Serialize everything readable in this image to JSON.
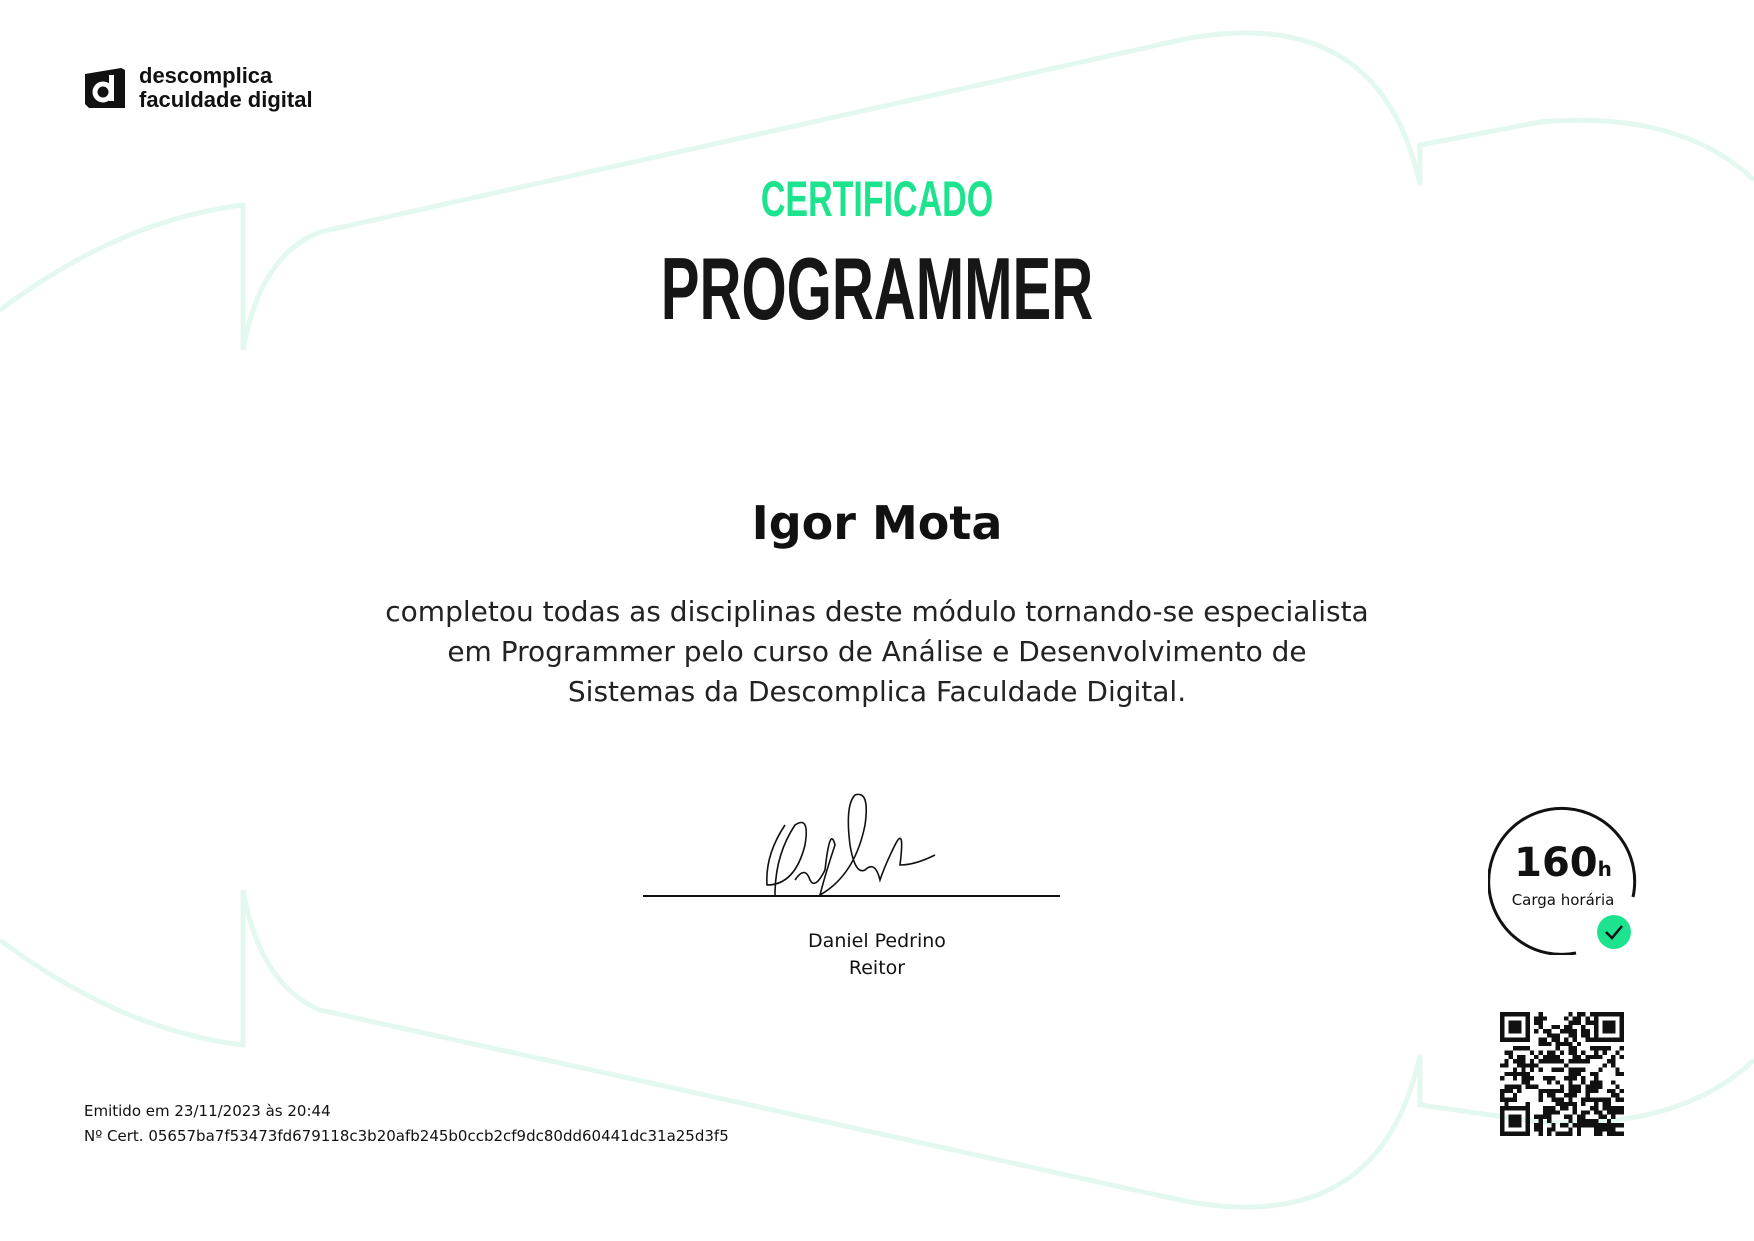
{
  "brand": {
    "line1": "descomplica",
    "line2": "faculdade digital"
  },
  "certificate": {
    "label": "CERTIFICADO",
    "course": "PROGRAMMER",
    "recipient": "Igor Mota",
    "description": [
      "completou todas as disciplinas deste módulo tornando-se especialista",
      "em Programmer pelo curso de Análise e Desenvolvimento de",
      "Sistemas da Descomplica Faculdade Digital."
    ]
  },
  "signer": {
    "name": "Daniel Pedrino",
    "title": "Reitor"
  },
  "workload": {
    "value": "160",
    "unit": "h",
    "label": "Carga horária",
    "icon": "check-icon"
  },
  "footer": {
    "issued": "Emitido em 23/11/2023 às 20:44",
    "cert_number": "Nº Cert. 05657ba7f53473fd679118c3b20afb245b0ccb2cf9dc80dd60441dc31a25d3f5"
  },
  "colors": {
    "accent": "#1de38f",
    "decor": "#e3f9f0",
    "text": "#111111"
  }
}
